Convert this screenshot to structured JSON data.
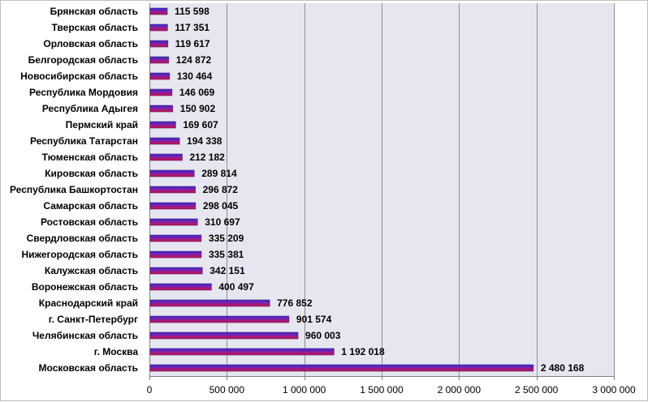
{
  "chart_data": {
    "type": "bar",
    "orientation": "horizontal",
    "title": "",
    "xlabel": "",
    "ylabel": "",
    "categories": [
      "Брянская область",
      "Тверская область",
      "Орловская область",
      "Белгородская область",
      "Новосибирская область",
      "Республика  Мордовия",
      "Республика  Адыгея",
      "Пермский край",
      "Республика  Татарстан",
      "Тюменская область",
      "Кировская область",
      "Республика  Башкортостан",
      "Самарская область",
      "Ростовская область",
      "Свердловская  область",
      "Нижегородская область",
      "Калужская  область",
      "Воронежская  область",
      "Краснодарский край",
      "г. Санкт-Петербург",
      "Челябинская  область",
      "г. Москва",
      "Московская область"
    ],
    "values": [
      115598,
      117351,
      119617,
      124872,
      130464,
      146069,
      150902,
      169607,
      194338,
      212182,
      289814,
      296872,
      298045,
      310697,
      335209,
      335381,
      342151,
      400497,
      776852,
      901574,
      960003,
      1192018,
      2480168
    ],
    "value_labels": [
      "115 598",
      "117 351",
      "119 617",
      "124 872",
      "130 464",
      "146 069",
      "150 902",
      "169 607",
      "194 338",
      "212 182",
      "289 814",
      "296 872",
      "298 045",
      "310 697",
      "335 209",
      "335 381",
      "342 151",
      "400 497",
      "776 852",
      "901 574",
      "960 003",
      "1 192 018",
      "2 480 168"
    ],
    "xlim": [
      0,
      3000000
    ],
    "x_ticks": [
      0,
      500000,
      1000000,
      1500000,
      2000000,
      2500000,
      3000000
    ],
    "x_tick_labels": [
      "0",
      "500 000",
      "1 000 000",
      "1 500 000",
      "2 000 000",
      "2 500 000",
      "3 000 000"
    ],
    "grid": true,
    "legend": "none",
    "colors": {
      "plot_background": "#e6e6f0",
      "gridline": "#8c8c9a",
      "bar_top": "#2b2bd6",
      "bar_bottom": "#c8104a",
      "bar_outline": "#5a1e6e"
    }
  }
}
